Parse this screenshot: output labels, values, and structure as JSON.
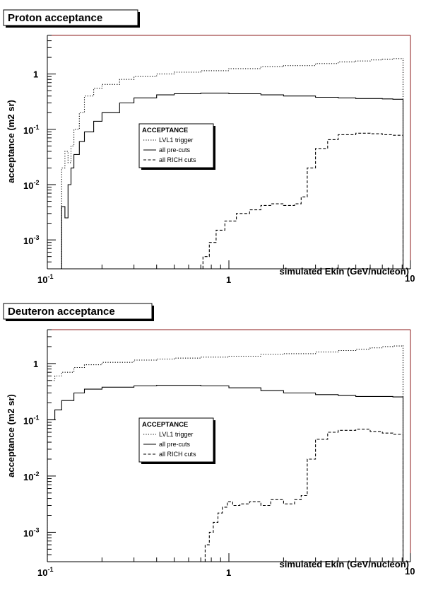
{
  "chart_data": [
    {
      "type": "line",
      "title": "Proton acceptance",
      "xlabel": "simulated Ekin (GeV/nucleon)",
      "ylabel": "acceptance (m2 sr)",
      "xscale": "log",
      "yscale": "log",
      "xlim": [
        0.1,
        10
      ],
      "ylim": [
        0.0003,
        5
      ],
      "x_tick_labels": [
        "10",
        "-1",
        "1",
        "10"
      ],
      "y_tick_labels": [
        {
          "base": "10",
          "exp": "-3"
        },
        {
          "base": "10",
          "exp": "-2"
        },
        {
          "base": "10",
          "exp": "-1"
        },
        {
          "base": "1",
          "exp": ""
        }
      ],
      "grid": false,
      "legend": {
        "title": "ACCEPTANCE",
        "position": "center-left",
        "entries": [
          "LVL1 trigger",
          "all pre-cuts",
          "all RICH cuts"
        ]
      },
      "series": [
        {
          "name": "LVL1 trigger",
          "style": "dotted",
          "x": [
            0.12,
            0.125,
            0.13,
            0.135,
            0.14,
            0.15,
            0.16,
            0.18,
            0.2,
            0.25,
            0.3,
            0.4,
            0.5,
            0.7,
            1.0,
            1.5,
            2,
            3,
            4,
            5,
            6,
            7,
            8,
            9.1
          ],
          "y": [
            0.02,
            0.04,
            0.025,
            0.05,
            0.1,
            0.2,
            0.4,
            0.55,
            0.65,
            0.8,
            0.9,
            1.0,
            1.08,
            1.15,
            1.25,
            1.35,
            1.42,
            1.55,
            1.65,
            1.72,
            1.8,
            1.85,
            1.9,
            1.95
          ]
        },
        {
          "name": "all pre-cuts",
          "style": "solid",
          "x": [
            0.12,
            0.125,
            0.13,
            0.135,
            0.14,
            0.15,
            0.16,
            0.18,
            0.2,
            0.25,
            0.3,
            0.4,
            0.5,
            0.7,
            1.0,
            1.5,
            2,
            3,
            4,
            5,
            6,
            7,
            8,
            9.1
          ],
          "y": [
            0.004,
            0.0025,
            0.01,
            0.02,
            0.035,
            0.06,
            0.09,
            0.14,
            0.2,
            0.3,
            0.37,
            0.42,
            0.44,
            0.45,
            0.44,
            0.42,
            0.4,
            0.38,
            0.37,
            0.36,
            0.36,
            0.355,
            0.35,
            0.35
          ]
        },
        {
          "name": "all RICH cuts",
          "style": "dashed",
          "x": [
            0.68,
            0.72,
            0.78,
            0.85,
            0.95,
            1.1,
            1.3,
            1.5,
            1.7,
            2.0,
            2.3,
            2.5,
            2.7,
            3.0,
            3.5,
            4.0,
            5.0,
            6.0,
            7.0,
            8.0,
            9.1
          ],
          "y": [
            0.0003,
            0.0005,
            0.0009,
            0.0015,
            0.0022,
            0.003,
            0.0035,
            0.0042,
            0.0045,
            0.0042,
            0.0045,
            0.006,
            0.02,
            0.045,
            0.065,
            0.08,
            0.085,
            0.083,
            0.08,
            0.078,
            0.078
          ]
        }
      ]
    },
    {
      "type": "line",
      "title": "Deuteron acceptance",
      "xlabel": "simulated Ekin (GeV/nucleon)",
      "ylabel": "acceptance (m2 sr)",
      "xscale": "log",
      "yscale": "log",
      "xlim": [
        0.1,
        10
      ],
      "ylim": [
        0.0003,
        4
      ],
      "x_tick_labels": [
        "10",
        "-1",
        "1",
        "10"
      ],
      "y_tick_labels": [
        {
          "base": "10",
          "exp": "-3"
        },
        {
          "base": "10",
          "exp": "-2"
        },
        {
          "base": "10",
          "exp": "-1"
        },
        {
          "base": "1",
          "exp": ""
        }
      ],
      "grid": false,
      "legend": {
        "title": "ACCEPTANCE",
        "position": "center-left",
        "entries": [
          "LVL1 trigger",
          "all pre-cuts",
          "all RICH cuts"
        ]
      },
      "series": [
        {
          "name": "LVL1 trigger",
          "style": "dotted",
          "x": [
            0.1,
            0.11,
            0.12,
            0.14,
            0.16,
            0.2,
            0.3,
            0.4,
            0.5,
            0.7,
            1.0,
            1.5,
            2,
            3,
            4,
            5,
            6,
            7,
            8,
            9.1
          ],
          "y": [
            0.5,
            0.6,
            0.7,
            0.85,
            0.95,
            1.05,
            1.15,
            1.2,
            1.25,
            1.3,
            1.35,
            1.45,
            1.5,
            1.6,
            1.7,
            1.8,
            1.9,
            2.0,
            2.05,
            2.1
          ]
        },
        {
          "name": "all pre-cuts",
          "style": "solid",
          "x": [
            0.1,
            0.11,
            0.12,
            0.14,
            0.16,
            0.2,
            0.3,
            0.4,
            0.5,
            0.7,
            1.0,
            1.5,
            2,
            3,
            4,
            5,
            6,
            7,
            8,
            9.1
          ],
          "y": [
            0.1,
            0.15,
            0.22,
            0.3,
            0.35,
            0.38,
            0.4,
            0.41,
            0.41,
            0.4,
            0.37,
            0.33,
            0.3,
            0.28,
            0.27,
            0.26,
            0.26,
            0.26,
            0.255,
            0.25
          ]
        },
        {
          "name": "all RICH cuts",
          "style": "dashed",
          "x": [
            0.7,
            0.74,
            0.78,
            0.82,
            0.87,
            0.92,
            0.98,
            1.05,
            1.15,
            1.3,
            1.5,
            1.7,
            2.0,
            2.3,
            2.5,
            2.7,
            3.0,
            3.5,
            4.0,
            5.0,
            6.0,
            7.0,
            8.0,
            9.1
          ],
          "y": [
            0.0003,
            0.0006,
            0.001,
            0.0015,
            0.0022,
            0.0028,
            0.0035,
            0.003,
            0.0032,
            0.0035,
            0.003,
            0.0038,
            0.0032,
            0.0038,
            0.0045,
            0.02,
            0.045,
            0.06,
            0.065,
            0.068,
            0.062,
            0.058,
            0.055,
            0.055
          ]
        }
      ]
    }
  ]
}
